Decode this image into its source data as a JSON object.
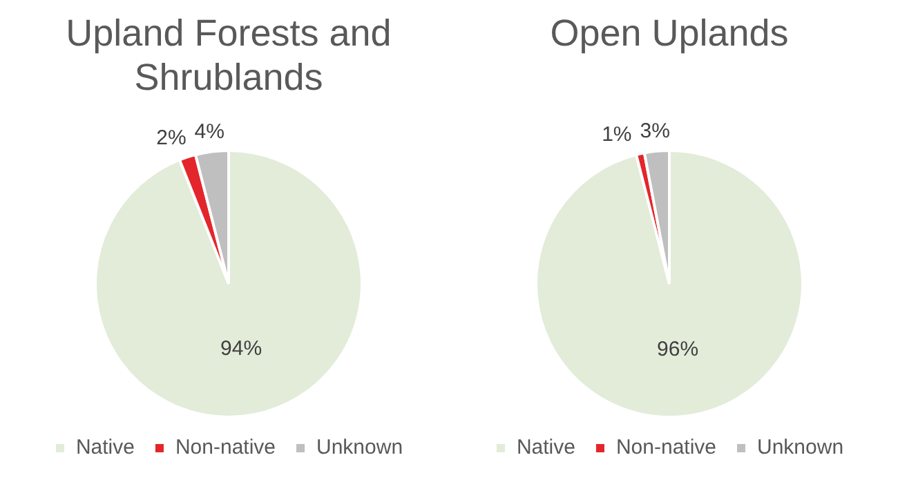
{
  "chart_data": [
    {
      "type": "pie",
      "title": "Upland Forests and Shrublands",
      "categories": [
        "Native",
        "Non-native",
        "Unknown"
      ],
      "values": [
        94,
        2,
        4
      ],
      "colors": [
        "#e2ecd9",
        "#e3262b",
        "#bfbfbf"
      ],
      "value_labels": [
        "94%",
        "2%",
        "4%"
      ],
      "legend": "bottom"
    },
    {
      "type": "pie",
      "title": "Open Uplands",
      "categories": [
        "Native",
        "Non-native",
        "Unknown"
      ],
      "values": [
        96,
        1,
        3
      ],
      "colors": [
        "#e2ecd9",
        "#e3262b",
        "#bfbfbf"
      ],
      "value_labels": [
        "96%",
        "1%",
        "3%"
      ],
      "legend": "bottom"
    }
  ]
}
